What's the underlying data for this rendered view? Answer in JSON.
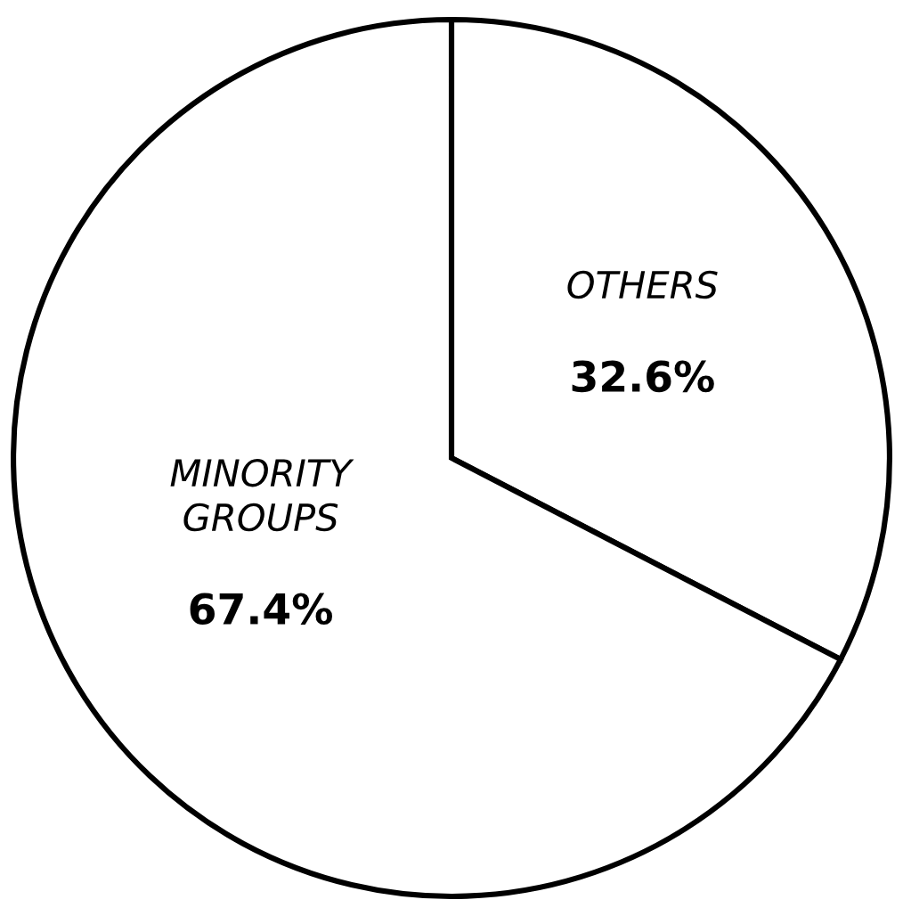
{
  "chart_data": {
    "type": "pie",
    "categories": [
      "OTHERS",
      "MINORITY GROUPS"
    ],
    "values": [
      32.6,
      67.4
    ],
    "value_labels": [
      "32.6%",
      "67.4%"
    ],
    "colors": [
      "#ffffff",
      "#ffffff"
    ]
  }
}
